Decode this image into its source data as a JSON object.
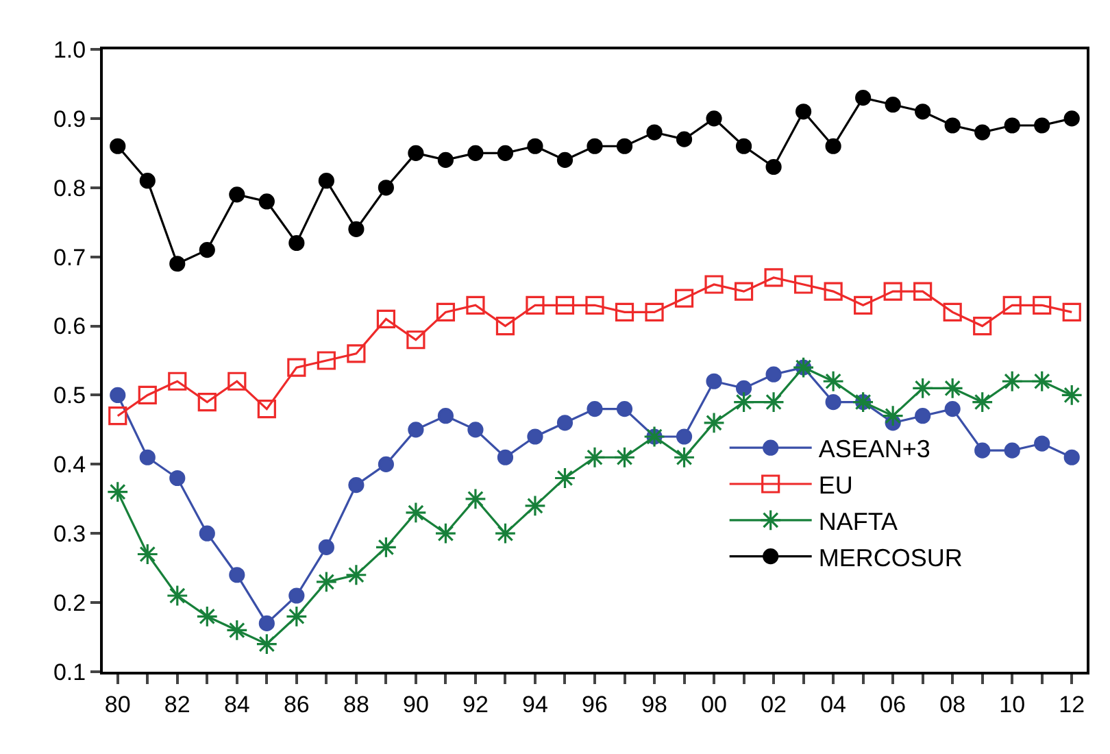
{
  "chart_data": {
    "type": "line",
    "x": [
      1980,
      1981,
      1982,
      1983,
      1984,
      1985,
      1986,
      1987,
      1988,
      1989,
      1990,
      1991,
      1992,
      1993,
      1994,
      1995,
      1996,
      1997,
      1998,
      1999,
      2000,
      2001,
      2002,
      2003,
      2004,
      2005,
      2006,
      2007,
      2008,
      2009,
      2010,
      2011,
      2012
    ],
    "series": [
      {
        "name": "ASEAN+3",
        "color": "#3a4fa8",
        "marker": "circle",
        "values": [
          0.5,
          0.41,
          0.38,
          0.3,
          0.24,
          0.17,
          0.21,
          0.28,
          0.37,
          0.4,
          0.45,
          0.47,
          0.45,
          0.41,
          0.44,
          0.46,
          0.48,
          0.48,
          0.44,
          0.44,
          0.52,
          0.51,
          0.53,
          0.54,
          0.49,
          0.49,
          0.46,
          0.47,
          0.48,
          0.42,
          0.42,
          0.43,
          0.41
        ]
      },
      {
        "name": "EU",
        "color": "#ee2a2a",
        "marker": "square",
        "values": [
          0.47,
          0.5,
          0.52,
          0.49,
          0.52,
          0.48,
          0.54,
          0.55,
          0.56,
          0.61,
          0.58,
          0.62,
          0.63,
          0.6,
          0.63,
          0.63,
          0.63,
          0.62,
          0.62,
          0.64,
          0.66,
          0.65,
          0.67,
          0.66,
          0.65,
          0.63,
          0.65,
          0.65,
          0.62,
          0.6,
          0.63,
          0.63,
          0.62
        ]
      },
      {
        "name": "NAFTA",
        "color": "#17803a",
        "marker": "cross",
        "values": [
          0.36,
          0.27,
          0.21,
          0.18,
          0.16,
          0.14,
          0.18,
          0.23,
          0.24,
          0.28,
          0.33,
          0.3,
          0.35,
          0.3,
          0.34,
          0.38,
          0.41,
          0.41,
          0.44,
          0.41,
          0.46,
          0.49,
          0.49,
          0.54,
          0.52,
          0.49,
          0.47,
          0.51,
          0.51,
          0.49,
          0.52,
          0.52,
          0.5
        ]
      },
      {
        "name": "MERCOSUR",
        "color": "#000000",
        "marker": "circle",
        "values": [
          0.86,
          0.81,
          0.69,
          0.71,
          0.79,
          0.78,
          0.72,
          0.81,
          0.74,
          0.8,
          0.85,
          0.84,
          0.85,
          0.85,
          0.86,
          0.84,
          0.86,
          0.86,
          0.88,
          0.87,
          0.9,
          0.86,
          0.83,
          0.91,
          0.86,
          0.93,
          0.92,
          0.91,
          0.89,
          0.88,
          0.89,
          0.89,
          0.9
        ]
      }
    ],
    "xlim": [
      1979.5,
      2012.5
    ],
    "xticks": [
      {
        "value": 1980,
        "label": "80"
      },
      {
        "value": 1981,
        "label": null
      },
      {
        "value": 1982,
        "label": "82"
      },
      {
        "value": 1983,
        "label": null
      },
      {
        "value": 1984,
        "label": "84"
      },
      {
        "value": 1985,
        "label": null
      },
      {
        "value": 1986,
        "label": "86"
      },
      {
        "value": 1987,
        "label": null
      },
      {
        "value": 1988,
        "label": "88"
      },
      {
        "value": 1989,
        "label": null
      },
      {
        "value": 1990,
        "label": "90"
      },
      {
        "value": 1991,
        "label": null
      },
      {
        "value": 1992,
        "label": "92"
      },
      {
        "value": 1993,
        "label": null
      },
      {
        "value": 1994,
        "label": "94"
      },
      {
        "value": 1995,
        "label": null
      },
      {
        "value": 1996,
        "label": "96"
      },
      {
        "value": 1997,
        "label": null
      },
      {
        "value": 1998,
        "label": "98"
      },
      {
        "value": 1999,
        "label": null
      },
      {
        "value": 2000,
        "label": "00"
      },
      {
        "value": 2001,
        "label": null
      },
      {
        "value": 2002,
        "label": "02"
      },
      {
        "value": 2003,
        "label": null
      },
      {
        "value": 2004,
        "label": "04"
      },
      {
        "value": 2005,
        "label": null
      },
      {
        "value": 2006,
        "label": "06"
      },
      {
        "value": 2007,
        "label": null
      },
      {
        "value": 2008,
        "label": "08"
      },
      {
        "value": 2009,
        "label": null
      },
      {
        "value": 2010,
        "label": "10"
      },
      {
        "value": 2011,
        "label": null
      },
      {
        "value": 2012,
        "label": "12"
      }
    ],
    "ylim": [
      0.1,
      1.0
    ],
    "yticks": [
      0.1,
      0.2,
      0.3,
      0.4,
      0.5,
      0.6,
      0.7,
      0.8,
      0.9,
      {
        "value": 1.0,
        "label": "1.0"
      }
    ],
    "grid": false,
    "legend": "bottom right",
    "line_style": "solid"
  }
}
